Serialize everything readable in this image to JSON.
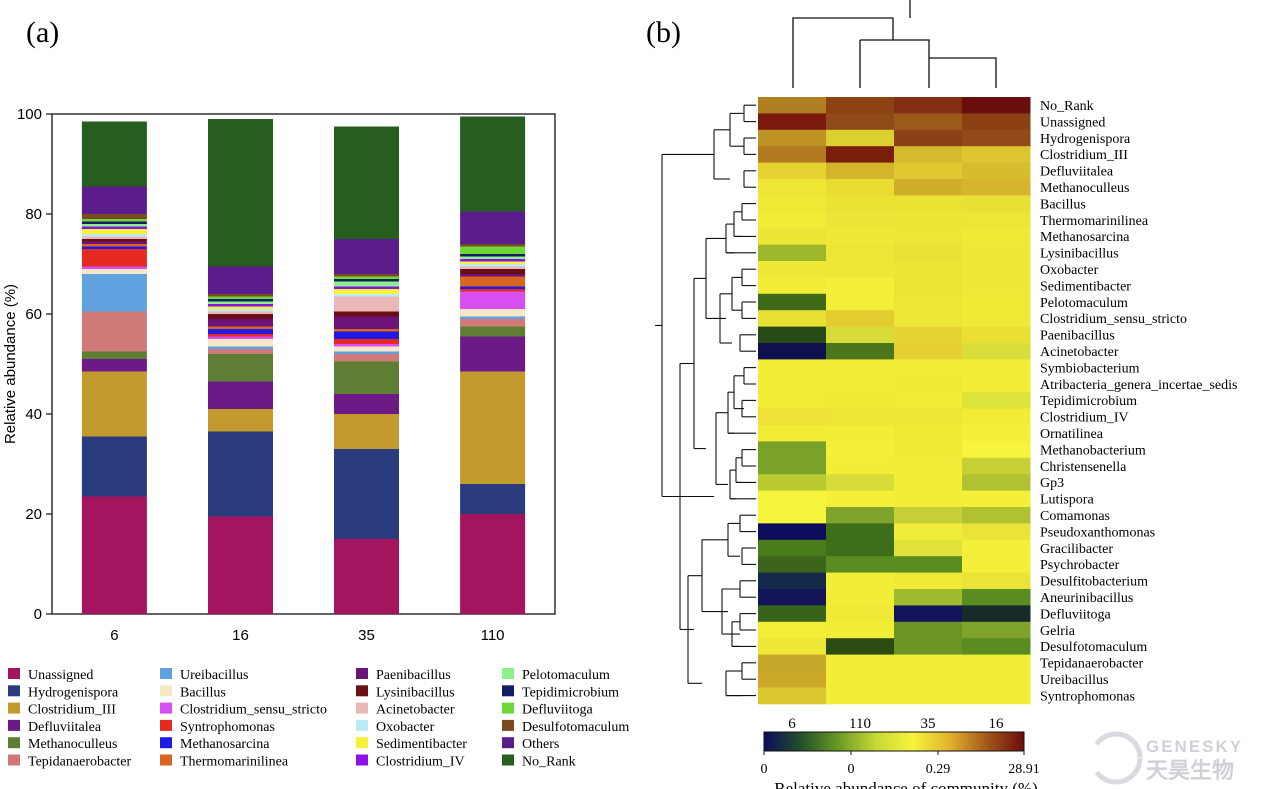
{
  "panel_a_label": "(a)",
  "panel_b_label": "(b)",
  "watermark": {
    "brand_en": "GENESKY",
    "brand_cn": "天昊生物"
  },
  "chart_data": [
    {
      "type": "bar",
      "stacked": true,
      "panel": "(a)",
      "title": "",
      "xlabel": "",
      "ylabel": "Relative abundance (%)",
      "ylim": [
        0,
        100
      ],
      "yticks": [
        0,
        20,
        40,
        60,
        80,
        100
      ],
      "categories": [
        "6",
        "16",
        "35",
        "110"
      ],
      "legend_placement": "bottom",
      "legend": [
        "Unassigned",
        "Hydrogenispora",
        "Clostridium_III",
        "Defluviitalea",
        "Methanoculleus",
        "Tepidanaerobacter",
        "Ureibacillus",
        "Bacillus",
        "Clostridium_sensu_stricto",
        "Syntrophomonas",
        "Methanosarcina",
        "Thermomarinilinea",
        "Paenibacillus",
        "Lysinibacillus",
        "Acinetobacter",
        "Oxobacter",
        "Sedimentibacter",
        "Clostridium_IV",
        "Pelotomaculum",
        "Tepidimicrobium",
        "Defluviitoga",
        "Desulfotomaculum",
        "Others",
        "No_Rank"
      ],
      "series": [
        {
          "name": "Unassigned",
          "color": "#a5145f",
          "values": [
            23.5,
            19.5,
            15.0,
            20.0
          ]
        },
        {
          "name": "Hydrogenispora",
          "color": "#2a3c7e",
          "values": [
            12.0,
            17.0,
            18.0,
            6.0
          ]
        },
        {
          "name": "Clostridium_III",
          "color": "#c29a2e",
          "values": [
            13.0,
            4.5,
            7.0,
            22.5
          ]
        },
        {
          "name": "Defluviitalea",
          "color": "#6b1a86",
          "values": [
            2.5,
            5.5,
            4.0,
            7.0
          ]
        },
        {
          "name": "Methanoculleus",
          "color": "#5e7e34",
          "values": [
            1.5,
            5.5,
            6.5,
            2.0
          ]
        },
        {
          "name": "Tepidanaerobacter",
          "color": "#cf7a79",
          "values": [
            8.0,
            1.0,
            1.5,
            1.5
          ]
        },
        {
          "name": "Ureibacillus",
          "color": "#60a2e0",
          "values": [
            7.5,
            0.5,
            0.5,
            0.5
          ]
        },
        {
          "name": "Bacillus",
          "color": "#f6e8c5",
          "values": [
            1.0,
            1.5,
            1.0,
            1.5
          ]
        },
        {
          "name": "Clostridium_sensu_stricto",
          "color": "#d84ef2",
          "values": [
            0.5,
            0.5,
            0.5,
            3.5
          ]
        },
        {
          "name": "Syntrophomonas",
          "color": "#e52a22",
          "values": [
            3.5,
            0.5,
            1.0,
            0.5
          ]
        },
        {
          "name": "Methanosarcina",
          "color": "#1f1ae6",
          "values": [
            0.5,
            1.0,
            1.5,
            0.5
          ]
        },
        {
          "name": "Thermomarinilinea",
          "color": "#d8661f",
          "values": [
            0.5,
            0.5,
            0.5,
            2.0
          ]
        },
        {
          "name": "Paenibacillus",
          "color": "#6c1278",
          "values": [
            0.5,
            1.5,
            2.5,
            0.5
          ]
        },
        {
          "name": "Lysinibacillus",
          "color": "#6c0e18",
          "values": [
            0.5,
            1.0,
            1.0,
            1.0
          ]
        },
        {
          "name": "Acinetobacter",
          "color": "#eab9b7",
          "values": [
            0.5,
            0.5,
            3.0,
            0.5
          ]
        },
        {
          "name": "Oxobacter",
          "color": "#bcecf3",
          "values": [
            0.5,
            0.5,
            0.5,
            0.5
          ]
        },
        {
          "name": "Sedimentibacter",
          "color": "#f6f23c",
          "values": [
            1.0,
            0.5,
            1.0,
            0.5
          ]
        },
        {
          "name": "Clostridium_IV",
          "color": "#8b12e6",
          "values": [
            0.5,
            0.5,
            0.5,
            0.5
          ]
        },
        {
          "name": "Pelotomaculum",
          "color": "#8ef08b",
          "values": [
            0.5,
            0.5,
            1.0,
            0.5
          ]
        },
        {
          "name": "Tepidimicrobium",
          "color": "#141e62",
          "values": [
            0.5,
            0.5,
            0.5,
            0.5
          ]
        },
        {
          "name": "Defluviitoga",
          "color": "#6fd838",
          "values": [
            0.5,
            0.5,
            0.5,
            1.5
          ]
        },
        {
          "name": "Desulfotomaculum",
          "color": "#7a4a22",
          "values": [
            1.0,
            0.5,
            0.5,
            0.5
          ]
        },
        {
          "name": "Others",
          "color": "#5b1d8b",
          "values": [
            5.5,
            5.5,
            7.0,
            6.5
          ]
        },
        {
          "name": "No_Rank",
          "color": "#255e1f",
          "values": [
            13.0,
            29.5,
            22.5,
            19.0
          ]
        }
      ]
    },
    {
      "type": "heatmap",
      "panel": "(b)",
      "title": "",
      "columns": [
        "6",
        "110",
        "35",
        "16"
      ],
      "rows": [
        "No_Rank",
        "Unassigned",
        "Hydrogenispora",
        "Clostridium_III",
        "Defluviitalea",
        "Methanoculleus",
        "Bacillus",
        "Thermomarinilinea",
        "Methanosarcina",
        "Lysinibacillus",
        "Oxobacter",
        "Sedimentibacter",
        "Pelotomaculum",
        "Clostridium_sensu_stricto",
        "Paenibacillus",
        "Acinetobacter",
        "Symbiobacterium",
        "Atribacteria_genera_incertae_sedis",
        "Tepidimicrobium",
        "Clostridium_IV",
        "Ornatilinea",
        "Methanobacterium",
        "Christensenella",
        "Gp3",
        "Lutispora",
        "Comamonas",
        "Pseudoxanthomonas",
        "Gracilibacter",
        "Psychrobacter",
        "Desulfitobacterium",
        "Aneurinibacillus",
        "Defluviitoga",
        "Gelria",
        "Desulfotomaculum",
        "Tepidanaerobacter",
        "Ureibacillus",
        "Syntrophomonas"
      ],
      "colors": [
        [
          "#b07f22",
          "#8d4214",
          "#822d14",
          "#6a0d0d"
        ],
        [
          "#7d1a10",
          "#8f4a18",
          "#9b5a1a",
          "#8d4014"
        ],
        [
          "#be9224",
          "#dcd030",
          "#8a4116",
          "#914a18"
        ],
        [
          "#b47a22",
          "#7a1e0c",
          "#d4ba2c",
          "#dcc530"
        ],
        [
          "#e6d230",
          "#d4b42a",
          "#e0c830",
          "#d6bd2c"
        ],
        [
          "#efe534",
          "#e8dc32",
          "#cfae2a",
          "#d4b52c"
        ],
        [
          "#f0ea36",
          "#ebe234",
          "#ebe234",
          "#eadf34"
        ],
        [
          "#f1ec36",
          "#ece436",
          "#ece536",
          "#ede636"
        ],
        [
          "#ede536",
          "#f0e836",
          "#ede636",
          "#f0ea36"
        ],
        [
          "#9eb82c",
          "#eee636",
          "#eae236",
          "#efe836"
        ],
        [
          "#f0e836",
          "#efe736",
          "#ece536",
          "#efe836"
        ],
        [
          "#f2ec36",
          "#f4f03a",
          "#ece536",
          "#efe836"
        ],
        [
          "#3e6a1a",
          "#f4f03a",
          "#eee636",
          "#f0e936"
        ],
        [
          "#e8e032",
          "#e2cc30",
          "#eee636",
          "#f0e936"
        ],
        [
          "#264b14",
          "#d8dc3a",
          "#e6d232",
          "#ecdf34"
        ],
        [
          "#10104e",
          "#4c761c",
          "#e6d032",
          "#dade3a"
        ],
        [
          "#f2ee38",
          "#f2ec36",
          "#f2ee38",
          "#f2ee38"
        ],
        [
          "#f2ee38",
          "#f2ec36",
          "#f0ea36",
          "#f2ee38"
        ],
        [
          "#f2ec36",
          "#f0ea36",
          "#f2ec36",
          "#dce43a"
        ],
        [
          "#efe236",
          "#eee636",
          "#eee636",
          "#f2ec36"
        ],
        [
          "#f2ec36",
          "#f2ee38",
          "#f0ea36",
          "#f4f03a"
        ],
        [
          "#7aa22a",
          "#f4f03a",
          "#f0ea36",
          "#f6f43c"
        ],
        [
          "#7aa22a",
          "#f2ee38",
          "#f2ec36",
          "#c6d035"
        ],
        [
          "#bcca32",
          "#d8dc38",
          "#f2ee38",
          "#b0c232"
        ],
        [
          "#f6f43c",
          "#f4f03a",
          "#f2ee38",
          "#f4f03a"
        ],
        [
          "#f6f43c",
          "#7ea22a",
          "#c6d036",
          "#b0c232"
        ],
        [
          "#0c0c5c",
          "#3e6e1a",
          "#f0ec3a",
          "#ebe438"
        ],
        [
          "#4a7c1c",
          "#3e6e1a",
          "#e0e23a",
          "#f4f03a"
        ],
        [
          "#3c641a",
          "#5a8c22",
          "#5a8c22",
          "#f4f03a"
        ],
        [
          "#14284a",
          "#f2ee38",
          "#f0ea36",
          "#ebe438"
        ],
        [
          "#141458",
          "#f2ee38",
          "#9ebc2e",
          "#5a8c22"
        ],
        [
          "#38641a",
          "#f0ea36",
          "#14145c",
          "#162a2a"
        ],
        [
          "#f4ee38",
          "#f2ee38",
          "#6a9424",
          "#7ea22a"
        ],
        [
          "#eee636",
          "#2a4c12",
          "#6a9424",
          "#5a8c22"
        ],
        [
          "#c6a82a",
          "#f2ee38",
          "#f2ee38",
          "#f2ee38"
        ],
        [
          "#cca82a",
          "#f2ee38",
          "#f2ee38",
          "#f2ee38"
        ],
        [
          "#dcc632",
          "#f2ee38",
          "#f2ee38",
          "#f2ee38"
        ]
      ],
      "colorbar": {
        "ticks": [
          "0",
          "0",
          "0.29",
          "28.91"
        ],
        "label": "Relative abundance of community (%)",
        "colors": [
          "#0c0c5c",
          "#24502a",
          "#6a9a24",
          "#c6d834",
          "#f6f43c",
          "#e2b22c",
          "#a3581a",
          "#6a0d0d"
        ]
      }
    }
  ]
}
